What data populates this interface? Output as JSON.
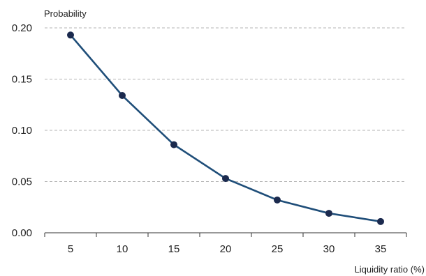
{
  "chart_data": {
    "type": "line",
    "xlabel": "Liquidity ratio (%)",
    "ylabel": "Probability",
    "x": [
      5,
      10,
      15,
      20,
      25,
      30,
      35
    ],
    "series": [
      {
        "values": [
          0.193,
          0.134,
          0.086,
          0.053,
          0.032,
          0.019,
          0.011
        ]
      }
    ],
    "xlim": [
      2.5,
      37.5
    ],
    "ylim": [
      0,
      0.2
    ],
    "y_ticks": [
      "0.00",
      "0.05",
      "0.10",
      "0.15",
      "0.20"
    ],
    "x_ticks": [
      "5",
      "10",
      "15",
      "20",
      "25",
      "30",
      "35"
    ],
    "grid": "horizontal dashed",
    "colors": {
      "line": "#1f4e79",
      "marker": "#1b2a4e"
    }
  }
}
